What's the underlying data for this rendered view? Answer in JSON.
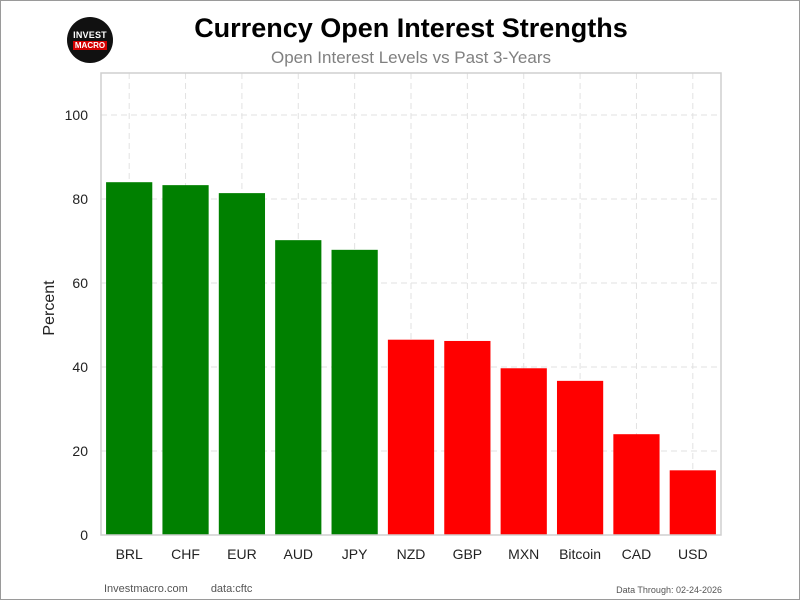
{
  "logo": {
    "top": "INVEST",
    "bottom": "MACRO"
  },
  "footer": {
    "site": "Investmacro.com",
    "source": "data:cftc",
    "data_through": "Data Through: 02-24-2026"
  },
  "colors": {
    "above": "#008000",
    "below": "#ff0000"
  },
  "chart_data": {
    "type": "bar",
    "title": "Currency Open Interest Strengths",
    "subtitle": "Open Interest Levels vs Past 3-Years",
    "xlabel": "",
    "ylabel": "Percent",
    "ylim": [
      0,
      110
    ],
    "yticks": [
      0,
      20,
      40,
      60,
      80,
      100
    ],
    "grid": true,
    "categories": [
      "BRL",
      "CHF",
      "EUR",
      "AUD",
      "JPY",
      "NZD",
      "GBP",
      "MXN",
      "Bitcoin",
      "CAD",
      "USD"
    ],
    "values": [
      84,
      83.3,
      81.4,
      70.2,
      67.9,
      46.5,
      46.2,
      39.7,
      36.7,
      24,
      15.4
    ]
  }
}
